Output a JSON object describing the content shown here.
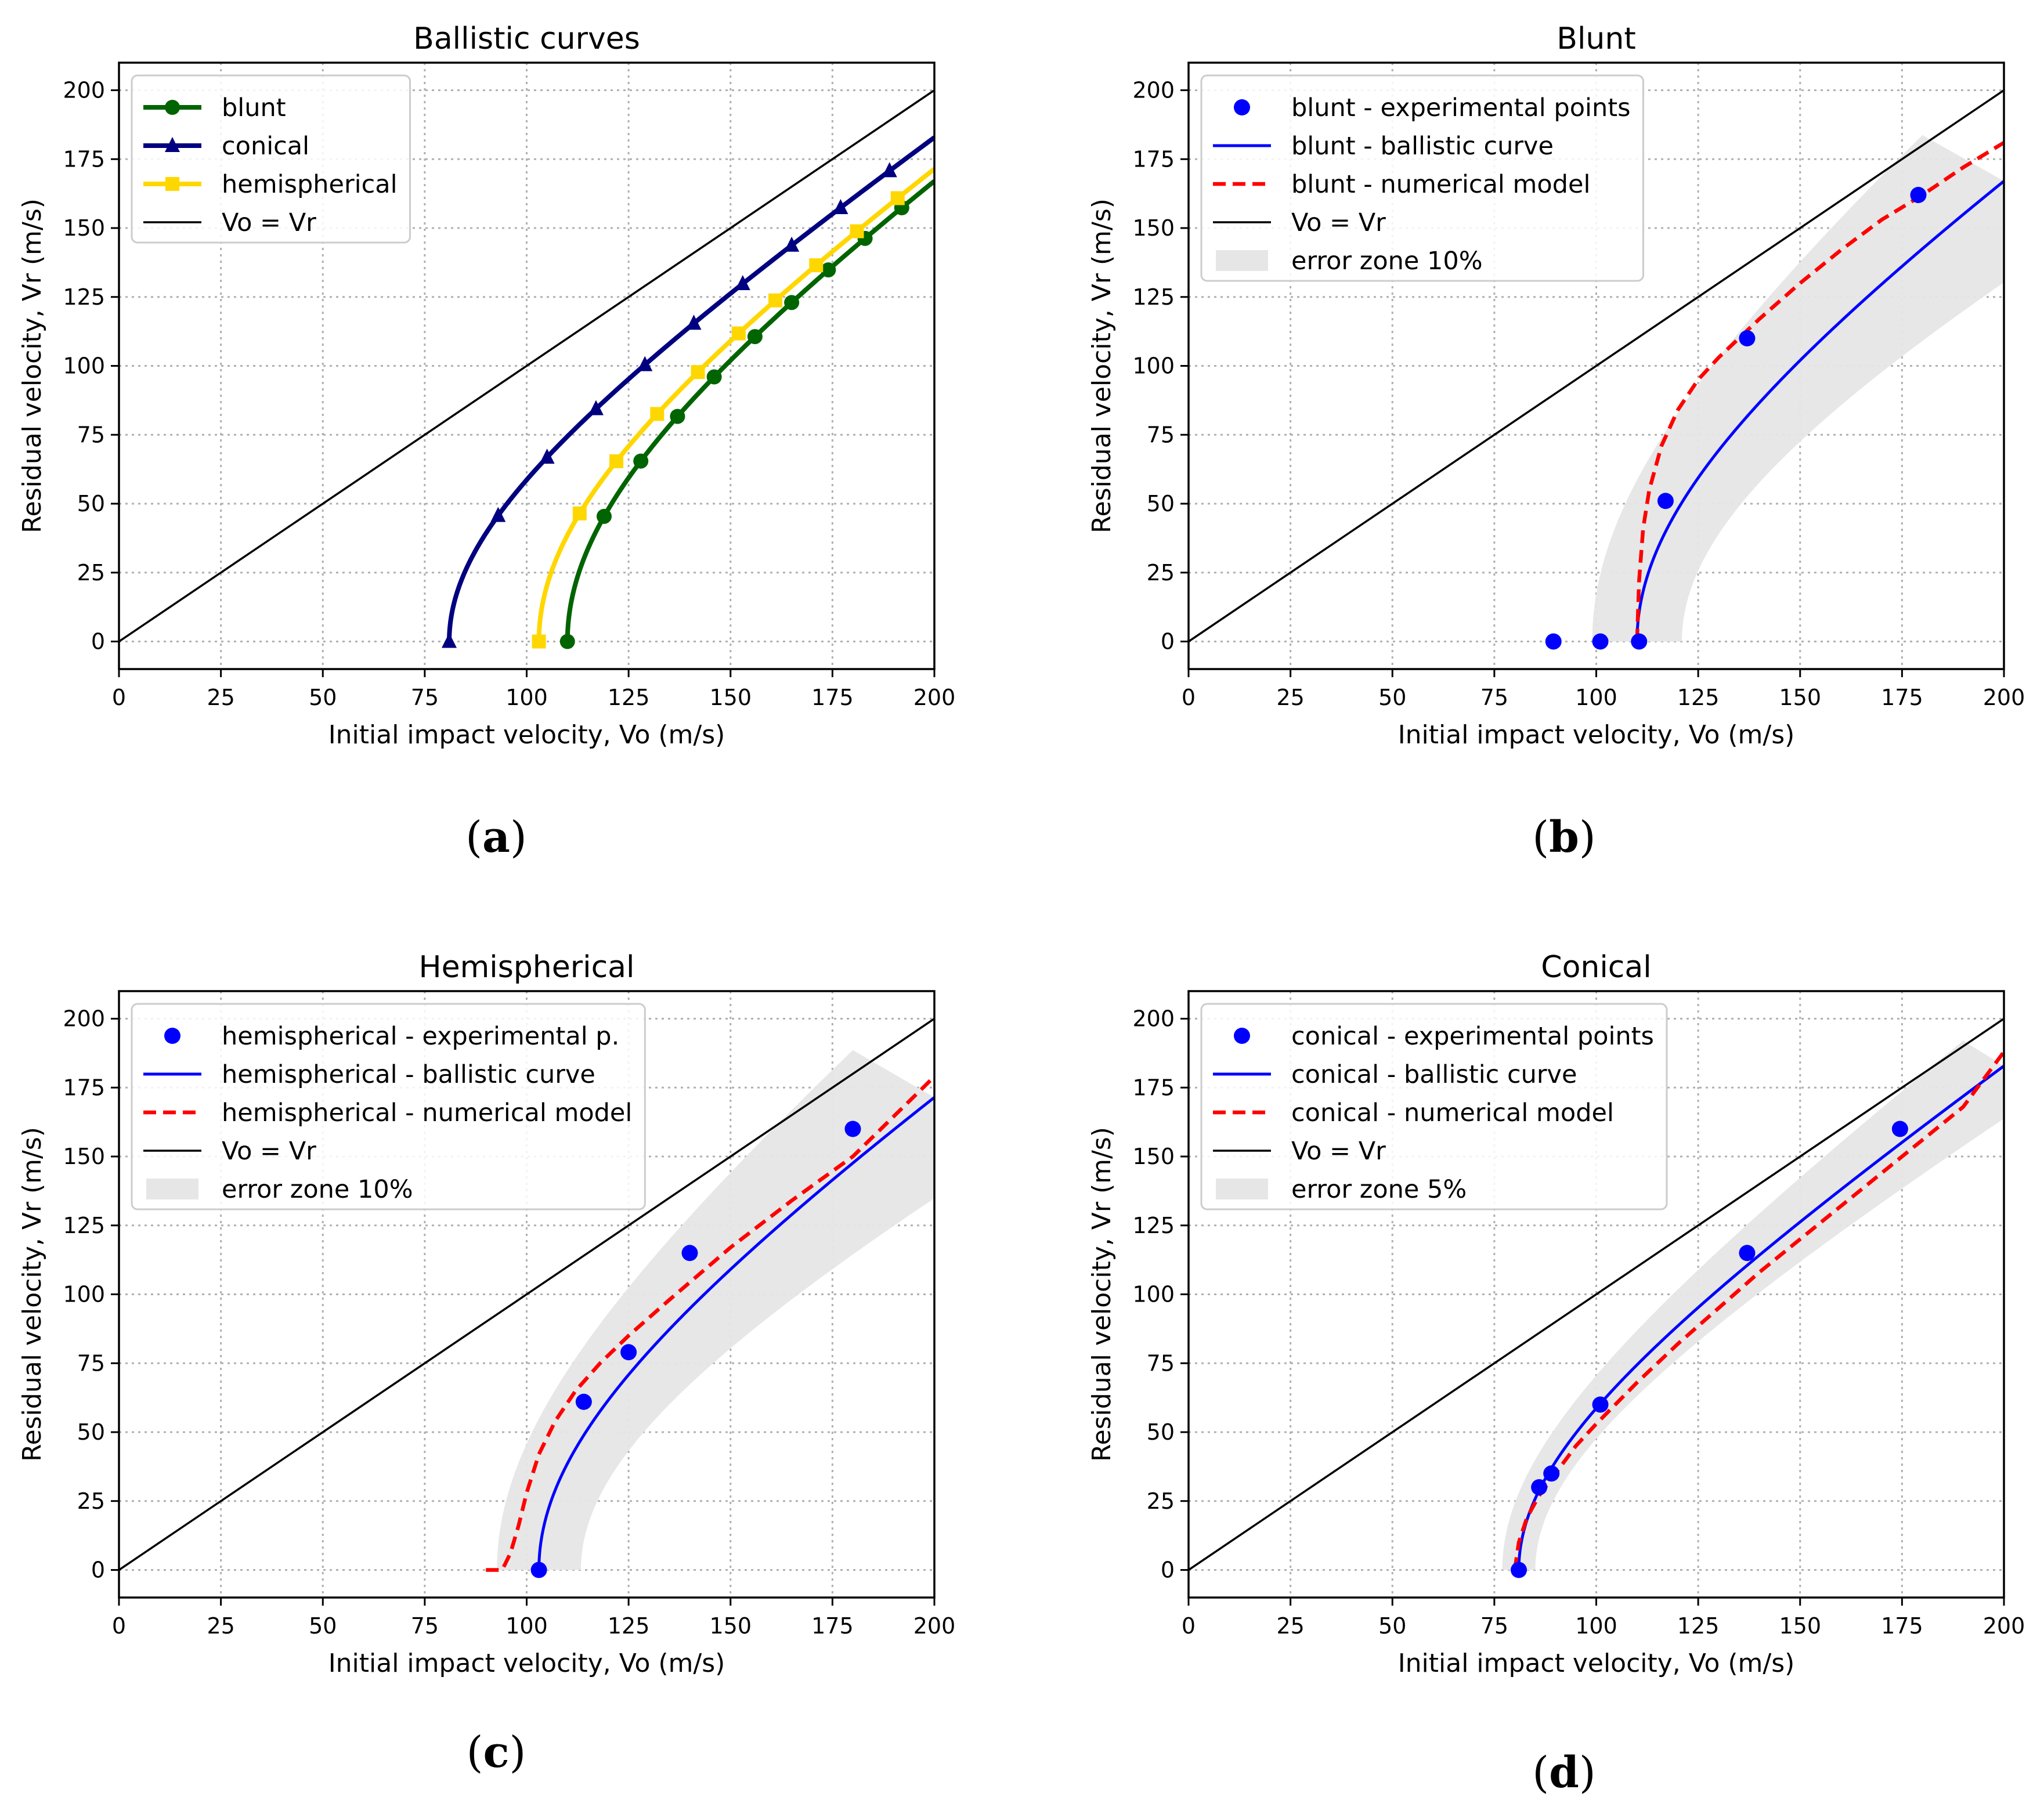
{
  "colors": {
    "blunt": "#006400",
    "conical": "#000080",
    "hemispherical": "#FFD700",
    "experimental": "#0000FF",
    "ballistic": "#0000FF",
    "numerical": "#FF0000",
    "ref": "#000000",
    "error_zone": "#E6E6E6"
  },
  "panel_labels": [
    {
      "open": "(",
      "letter": "a",
      "close": ")"
    },
    {
      "open": "(",
      "letter": "b",
      "close": ")"
    },
    {
      "open": "(",
      "letter": "c",
      "close": ")"
    },
    {
      "open": "(",
      "letter": "d",
      "close": ")"
    }
  ],
  "chart_data": [
    {
      "id": "a",
      "type": "line",
      "title": "Ballistic curves",
      "xlabel": "Initial impact velocity, Vo (m/s)",
      "ylabel": "Residual velocity, Vr (m/s)",
      "xlim": [
        0,
        200
      ],
      "ylim": [
        -10,
        210
      ],
      "xticks": [
        0,
        25,
        50,
        75,
        100,
        125,
        150,
        175,
        200
      ],
      "yticks": [
        0,
        25,
        50,
        75,
        100,
        125,
        150,
        175,
        200
      ],
      "grid": true,
      "legend_position": "upper-left",
      "series": [
        {
          "name": "blunt",
          "kind": "ballistic",
          "V0": 110,
          "V_end": 200,
          "marker": "circle",
          "color_key": "blunt",
          "marker_x": [
            110,
            119,
            128,
            137,
            146,
            156,
            165,
            174,
            183,
            192
          ]
        },
        {
          "name": "conical",
          "kind": "ballistic",
          "V0": 81,
          "V_end": 200,
          "marker": "triangle",
          "color_key": "conical",
          "marker_x": [
            81,
            93,
            105,
            117,
            129,
            141,
            153,
            165,
            177,
            189
          ]
        },
        {
          "name": "hemispherical",
          "kind": "ballistic",
          "V0": 103,
          "V_end": 200,
          "marker": "square",
          "color_key": "hemispherical",
          "marker_x": [
            103,
            113,
            122,
            132,
            142,
            152,
            161,
            171,
            181,
            191
          ]
        },
        {
          "name": "Vo = Vr",
          "kind": "identity",
          "x": [
            0,
            200
          ],
          "y": [
            0,
            200
          ],
          "color_key": "ref"
        }
      ]
    },
    {
      "id": "b",
      "type": "scatter",
      "title": "Blunt",
      "xlabel": "Initial impact velocity, Vo (m/s)",
      "ylabel": "Residual velocity, Vr (m/s)",
      "xlim": [
        0,
        200
      ],
      "ylim": [
        -10,
        210
      ],
      "xticks": [
        0,
        25,
        50,
        75,
        100,
        125,
        150,
        175,
        200
      ],
      "yticks": [
        0,
        25,
        50,
        75,
        100,
        125,
        150,
        175,
        200
      ],
      "grid": true,
      "legend_position": "upper-left",
      "series": [
        {
          "name": "blunt - experimental points",
          "kind": "points",
          "color_key": "experimental",
          "x": [
            89.5,
            101,
            110.5,
            117,
            137,
            179
          ],
          "y": [
            0,
            0,
            0,
            51,
            110,
            162
          ]
        },
        {
          "name": "blunt - ballistic curve",
          "kind": "ballistic",
          "V0": 110,
          "V_end": 200,
          "color_key": "ballistic"
        },
        {
          "name": "blunt - numerical model",
          "kind": "numerical",
          "color_key": "numerical",
          "x": [
            110,
            110.5,
            111.5,
            113,
            116,
            120,
            125,
            130,
            140,
            150,
            160,
            170,
            180,
            190,
            200
          ],
          "y": [
            0,
            22,
            41,
            55,
            71,
            84,
            95,
            103,
            117,
            130,
            142,
            153,
            162,
            172,
            181
          ]
        },
        {
          "name": "Vo = Vr",
          "kind": "identity",
          "x": [
            0,
            200
          ],
          "y": [
            0,
            200
          ],
          "color_key": "ref"
        },
        {
          "name": "error zone 10%",
          "kind": "band",
          "center": "ballistic",
          "pct": 0.1,
          "color_key": "error_zone"
        }
      ]
    },
    {
      "id": "c",
      "type": "scatter",
      "title": "Hemispherical",
      "xlabel": "Initial impact velocity, Vo (m/s)",
      "ylabel": "Residual velocity, Vr (m/s)",
      "xlim": [
        0,
        200
      ],
      "ylim": [
        -10,
        210
      ],
      "xticks": [
        0,
        25,
        50,
        75,
        100,
        125,
        150,
        175,
        200
      ],
      "yticks": [
        0,
        25,
        50,
        75,
        100,
        125,
        150,
        175,
        200
      ],
      "grid": true,
      "legend_position": "upper-left",
      "series": [
        {
          "name": "hemispherical - experimental p.",
          "kind": "points",
          "color_key": "experimental",
          "x": [
            103,
            114,
            125,
            140,
            180
          ],
          "y": [
            0,
            61,
            79,
            115,
            160
          ]
        },
        {
          "name": "hemispherical - ballistic curve",
          "kind": "ballistic",
          "V0": 103,
          "V_end": 200,
          "color_key": "ballistic"
        },
        {
          "name": "hemispherical - numerical model",
          "kind": "numerical",
          "color_key": "numerical",
          "x": [
            90,
            94,
            96,
            98,
            100,
            103,
            107,
            112,
            118,
            125,
            135,
            150,
            165,
            180,
            200
          ],
          "y": [
            0,
            0,
            6,
            16,
            28,
            42,
            54,
            65,
            75,
            85,
            98,
            117,
            134,
            150,
            179
          ]
        },
        {
          "name": "Vo = Vr",
          "kind": "identity",
          "x": [
            0,
            200
          ],
          "y": [
            0,
            200
          ],
          "color_key": "ref"
        },
        {
          "name": "error zone 10%",
          "kind": "band",
          "center": "ballistic",
          "pct": 0.1,
          "color_key": "error_zone"
        }
      ]
    },
    {
      "id": "d",
      "type": "scatter",
      "title": "Conical",
      "xlabel": "Initial impact velocity, Vo (m/s)",
      "ylabel": "Residual velocity, Vr (m/s)",
      "xlim": [
        0,
        200
      ],
      "ylim": [
        -10,
        210
      ],
      "xticks": [
        0,
        25,
        50,
        75,
        100,
        125,
        150,
        175,
        200
      ],
      "yticks": [
        0,
        25,
        50,
        75,
        100,
        125,
        150,
        175,
        200
      ],
      "grid": true,
      "legend_position": "upper-left",
      "series": [
        {
          "name": "conical - experimental points",
          "kind": "points",
          "color_key": "experimental",
          "x": [
            81,
            86,
            89,
            101,
            137,
            174.5
          ],
          "y": [
            0,
            30,
            35,
            60,
            115,
            160
          ]
        },
        {
          "name": "conical - ballistic curve",
          "kind": "ballistic",
          "V0": 81,
          "V_end": 200,
          "color_key": "ballistic"
        },
        {
          "name": "conical - numerical model",
          "kind": "numerical",
          "color_key": "numerical",
          "x": [
            80,
            81,
            83,
            86,
            90,
            95,
            100,
            110,
            120,
            130,
            140,
            150,
            160,
            170,
            180,
            190,
            200
          ],
          "y": [
            0,
            10,
            19,
            27,
            35,
            45,
            53,
            68,
            82,
            95,
            108,
            120,
            132,
            144,
            156,
            168,
            188
          ]
        },
        {
          "name": "Vo = Vr",
          "kind": "identity",
          "x": [
            0,
            200
          ],
          "y": [
            0,
            200
          ],
          "color_key": "ref"
        },
        {
          "name": "error zone 5%",
          "kind": "band",
          "center": "ballistic",
          "pct": 0.05,
          "color_key": "error_zone"
        }
      ]
    }
  ]
}
